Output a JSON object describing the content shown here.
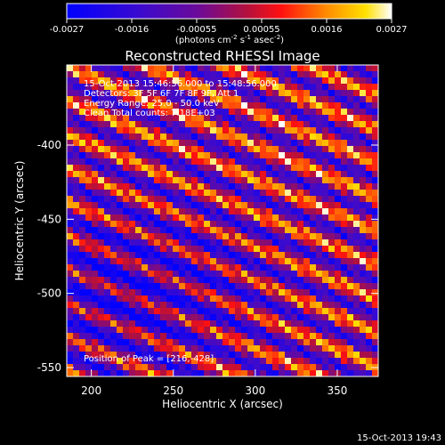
{
  "chart_data": {
    "type": "heatmap",
    "title": "Reconstructed RHESSI Image",
    "xlabel": "Heliocentric X (arcsec)",
    "ylabel": "Heliocentric Y (arcsec)",
    "xlim": [
      185,
      375
    ],
    "ylim": [
      -556,
      -346
    ],
    "x_ticks": [
      200,
      250,
      300,
      350
    ],
    "y_ticks": [
      -400,
      -450,
      -500,
      -550
    ],
    "colorbar": {
      "range": [
        -0.0027,
        0.0027
      ],
      "ticks": [
        "-0.0027",
        "-0.0016",
        "-0.00055",
        "0.00055",
        "0.0016",
        "0.0027"
      ],
      "unit_label": "(photons cm",
      "unit_sup1": "-2",
      "unit_mid": " s",
      "unit_sup2": "-1",
      "unit_end": " asec",
      "unit_sup3": "-2",
      "unit_close": ")"
    },
    "annotations": [
      "15-Oct-2013 15:46:56.000 to 15:48:56.000",
      "Detectors: 3F 5F 6F 7F 8F 9F, Att 1",
      "Energy Range: 25.0 - 50.0 keV",
      "Clean    Total counts: 7.18E+03"
    ],
    "peak_label": "Position of Peak = [216,-428]",
    "peak": [
      216,
      -428
    ],
    "pattern": {
      "description_of_field": "diagonal fringe pattern",
      "stripe_direction": "down-right"
    }
  },
  "footer": {
    "timestamp": "15-Oct-2013 19:43"
  }
}
